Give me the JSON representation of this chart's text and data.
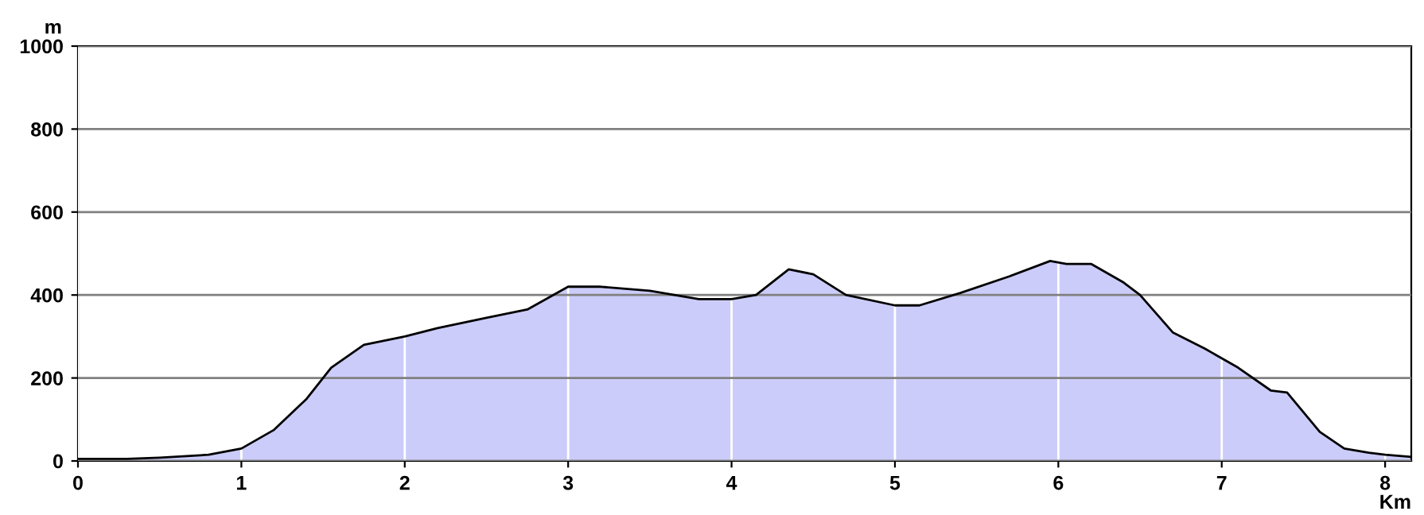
{
  "chart_data": {
    "type": "area",
    "xlabel": "Km",
    "ylabel": "m",
    "x": [
      0,
      0.3,
      0.5,
      0.8,
      1.0,
      1.2,
      1.4,
      1.55,
      1.75,
      2.0,
      2.2,
      2.5,
      2.75,
      3.0,
      3.2,
      3.5,
      3.8,
      4.0,
      4.15,
      4.35,
      4.5,
      4.7,
      5.0,
      5.15,
      5.4,
      5.7,
      5.95,
      6.05,
      6.2,
      6.4,
      6.5,
      6.7,
      6.9,
      7.1,
      7.3,
      7.4,
      7.6,
      7.75,
      7.9,
      8.0,
      8.16
    ],
    "series": [
      {
        "color": "#ccccfa",
        "values": [
          5,
          5,
          8,
          15,
          30,
          75,
          150,
          225,
          280,
          300,
          320,
          345,
          365,
          420,
          420,
          410,
          390,
          390,
          400,
          462,
          450,
          400,
          375,
          375,
          405,
          445,
          482,
          475,
          475,
          430,
          400,
          310,
          270,
          225,
          170,
          165,
          70,
          30,
          20,
          15,
          10
        ]
      }
    ],
    "xlim": [
      0,
      8.16
    ],
    "ylim": [
      0,
      1000
    ],
    "xticks": [
      0,
      1,
      2,
      3,
      4,
      5,
      6,
      7,
      8
    ],
    "yticks": [
      0,
      200,
      400,
      600,
      800,
      1000
    ],
    "grid": true
  }
}
